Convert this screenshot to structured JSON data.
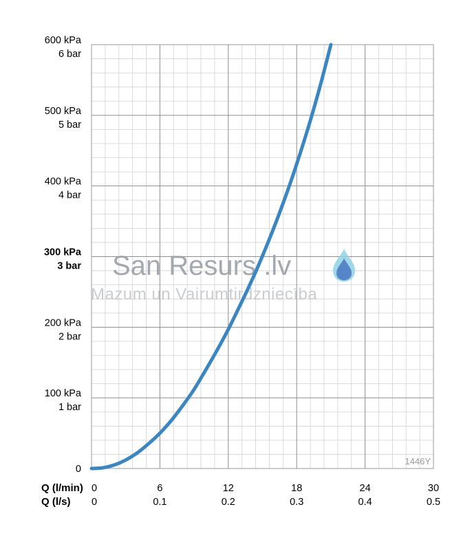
{
  "chart_data": {
    "type": "line",
    "title": "",
    "xlabel": "",
    "ylabel": "",
    "x_axis_primary": {
      "label": "Q (l/min)",
      "ticks": [
        "0",
        "6",
        "12",
        "18",
        "24",
        "30"
      ],
      "range": [
        0,
        30
      ]
    },
    "x_axis_secondary": {
      "label": "Q (l/s)",
      "ticks": [
        "0",
        "0.1",
        "0.2",
        "0.3",
        "0.4",
        "0.5"
      ],
      "range": [
        0,
        0.5
      ]
    },
    "y_axis": {
      "range": [
        0,
        600
      ],
      "ticks": [
        {
          "value": 0,
          "kpa": "0",
          "bar": ""
        },
        {
          "value": 100,
          "kpa": "100 kPa",
          "bar": "1 bar"
        },
        {
          "value": 200,
          "kpa": "200 kPa",
          "bar": "2 bar"
        },
        {
          "value": 300,
          "kpa": "300 kPa",
          "bar": "3 bar",
          "bold": true
        },
        {
          "value": 400,
          "kpa": "400 kPa",
          "bar": "4 bar"
        },
        {
          "value": 500,
          "kpa": "500 kPa",
          "bar": "5 bar"
        },
        {
          "value": 600,
          "kpa": "600 kPa",
          "bar": "6 bar"
        }
      ]
    },
    "grid": true,
    "series": [
      {
        "color": "#3a86c2",
        "x": [
          0,
          1,
          2,
          3,
          4,
          5,
          6,
          7,
          8,
          9,
          10,
          11,
          12,
          13,
          14,
          15,
          16,
          17,
          18,
          19,
          20,
          21
        ],
        "y": [
          0,
          1,
          5,
          12,
          22,
          35,
          50,
          68,
          89,
          112,
          139,
          167,
          197,
          230,
          264,
          301,
          341,
          384,
          431,
          482,
          538,
          600
        ]
      }
    ],
    "code_label": "1446Y"
  },
  "watermark": {
    "brand": "San Resurs .lv",
    "tagline": "Mazum un Vairumtirdzniecība",
    "icon": "water-drop-icon",
    "colors": {
      "drop_outer": "#8fd3e6",
      "drop_inner": "#4e7cc4"
    }
  }
}
